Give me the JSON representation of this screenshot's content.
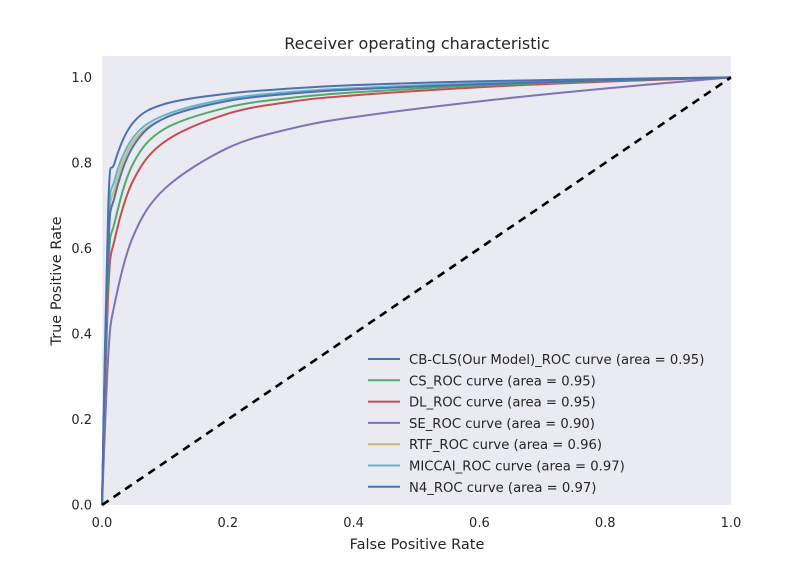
{
  "chart_data": {
    "type": "line",
    "title": "Receiver operating characteristic",
    "xlabel": "False Positive Rate",
    "ylabel": "True Positive Rate",
    "xlim": [
      0.0,
      1.0
    ],
    "ylim": [
      0.0,
      1.05
    ],
    "xticks": [
      "0.0",
      "0.2",
      "0.4",
      "0.6",
      "0.8",
      "1.0"
    ],
    "yticks": [
      "0.0",
      "0.2",
      "0.4",
      "0.6",
      "0.8",
      "1.0"
    ],
    "grid": false,
    "background": "#eaeaf2",
    "legend_position": "lower right",
    "series": [
      {
        "name": "CB-CLS(Our Model)_ROC curve (area = 0.95)",
        "color": "#4c72b0",
        "x": [
          0,
          0.01,
          0.02,
          0.05,
          0.1,
          0.2,
          0.3,
          0.4,
          0.6,
          0.8,
          1.0
        ],
        "y": [
          0,
          0.6,
          0.72,
          0.84,
          0.905,
          0.945,
          0.962,
          0.972,
          0.984,
          0.993,
          1.0
        ]
      },
      {
        "name": "CS_ROC curve (area = 0.95)",
        "color": "#55a868",
        "x": [
          0,
          0.01,
          0.02,
          0.05,
          0.1,
          0.2,
          0.3,
          0.4,
          0.6,
          0.8,
          1.0
        ],
        "y": [
          0,
          0.55,
          0.66,
          0.8,
          0.88,
          0.93,
          0.952,
          0.965,
          0.981,
          0.992,
          1.0
        ]
      },
      {
        "name": "DL_ROC curve (area = 0.95)",
        "color": "#c44e52",
        "x": [
          0,
          0.01,
          0.02,
          0.05,
          0.1,
          0.2,
          0.3,
          0.4,
          0.6,
          0.8,
          1.0
        ],
        "y": [
          0,
          0.5,
          0.62,
          0.76,
          0.85,
          0.915,
          0.943,
          0.958,
          0.977,
          0.99,
          1.0
        ]
      },
      {
        "name": "SE_ROC curve (area = 0.90)",
        "color": "#8172b2",
        "x": [
          0,
          0.01,
          0.02,
          0.05,
          0.1,
          0.2,
          0.3,
          0.4,
          0.6,
          0.8,
          1.0
        ],
        "y": [
          0,
          0.35,
          0.47,
          0.63,
          0.74,
          0.835,
          0.88,
          0.907,
          0.944,
          0.974,
          1.0
        ]
      },
      {
        "name": "RTF_ROC curve (area = 0.96)",
        "color": "#ccb974",
        "x": [
          0,
          0.01,
          0.02,
          0.05,
          0.1,
          0.2,
          0.3,
          0.4,
          0.6,
          0.8,
          1.0
        ],
        "y": [
          0,
          0.62,
          0.74,
          0.85,
          0.905,
          0.945,
          0.962,
          0.972,
          0.985,
          0.994,
          1.0
        ]
      },
      {
        "name": "MICCAI_ROC curve (area = 0.97)",
        "color": "#64b5cd",
        "x": [
          0,
          0.01,
          0.02,
          0.05,
          0.1,
          0.2,
          0.3,
          0.4,
          0.6,
          0.8,
          1.0
        ],
        "y": [
          0,
          0.64,
          0.76,
          0.86,
          0.912,
          0.95,
          0.966,
          0.975,
          0.987,
          0.995,
          1.0
        ]
      },
      {
        "name": "N4_ROC curve (area = 0.97)",
        "color": "#4c72b0",
        "x": [
          0,
          0.01,
          0.02,
          0.05,
          0.1,
          0.2,
          0.3,
          0.4,
          0.6,
          0.8,
          1.0
        ],
        "y": [
          0,
          0.7,
          0.8,
          0.895,
          0.938,
          0.962,
          0.974,
          0.982,
          0.991,
          0.996,
          1.0
        ]
      }
    ],
    "reference_line": {
      "x": [
        0,
        1
      ],
      "y": [
        0,
        1
      ],
      "color": "#000000",
      "style": "dashed"
    }
  }
}
